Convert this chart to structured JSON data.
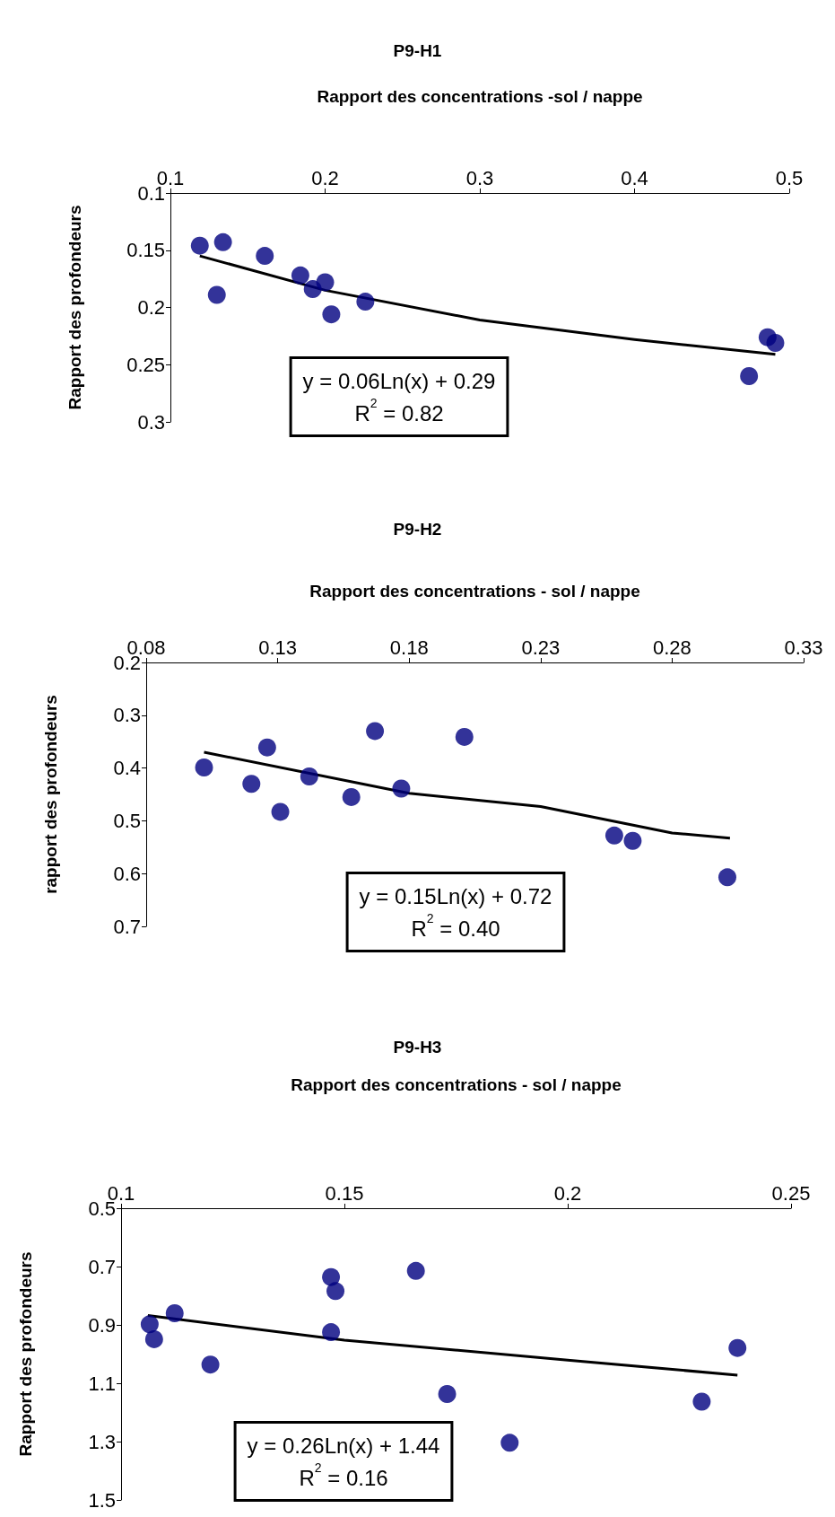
{
  "chart_data": [
    {
      "type": "scatter",
      "title": "P9-H1",
      "xlabel": "Rapport des concentrations -sol / nappe",
      "ylabel": "Rapport des profondeurs",
      "xlim": [
        0.1,
        0.5
      ],
      "xticks": [
        0.1,
        0.2,
        0.3,
        0.4,
        0.5
      ],
      "ylim": [
        0.3,
        0.1
      ],
      "yticks": [
        0.1,
        0.15,
        0.2,
        0.25,
        0.3
      ],
      "grid": false,
      "annotations": [
        "y = 0.06Ln(x) + 0.29",
        "R$^{2}$ = 0.82"
      ],
      "series": [
        {
          "marker": "circle",
          "color": "#000080",
          "x": [
            0.119,
            0.134,
            0.13,
            0.161,
            0.184,
            0.192,
            0.2,
            0.204,
            0.226,
            0.474,
            0.486,
            0.491
          ],
          "values": [
            0.146,
            0.143,
            0.189,
            0.155,
            0.172,
            0.184,
            0.178,
            0.206,
            0.195,
            0.26,
            0.226,
            0.231
          ]
        },
        {
          "type": "line",
          "marker": "none",
          "color": "#000000",
          "x": [
            0.119,
            0.2,
            0.3,
            0.4,
            0.491
          ],
          "values": [
            0.155,
            0.185,
            0.211,
            0.228,
            0.241
          ]
        }
      ]
    },
    {
      "type": "scatter",
      "title": "P9-H2",
      "xlabel": "Rapport des concentrations - sol / nappe",
      "ylabel": "rapport des profondeurs",
      "xlim": [
        0.08,
        0.33
      ],
      "xticks": [
        0.08,
        0.13,
        0.18,
        0.23,
        0.28,
        0.33
      ],
      "ylim": [
        0.7,
        0.2
      ],
      "yticks": [
        0.2,
        0.3,
        0.4,
        0.5,
        0.6,
        0.7
      ],
      "grid": false,
      "annotations": [
        "y = 0.15Ln(x) + 0.72",
        "R$^{2}$ = 0.40"
      ],
      "series": [
        {
          "marker": "circle",
          "color": "#000080",
          "x": [
            0.102,
            0.12,
            0.126,
            0.131,
            0.142,
            0.158,
            0.167,
            0.177,
            0.201,
            0.258,
            0.265,
            0.301
          ],
          "values": [
            0.399,
            0.43,
            0.361,
            0.483,
            0.416,
            0.455,
            0.33,
            0.439,
            0.341,
            0.528,
            0.538,
            0.607
          ]
        },
        {
          "type": "line",
          "marker": "none",
          "color": "#000000",
          "x": [
            0.102,
            0.18,
            0.23,
            0.28,
            0.302
          ],
          "values": [
            0.37,
            0.448,
            0.473,
            0.523,
            0.533
          ]
        }
      ]
    },
    {
      "type": "scatter",
      "title": "P9-H3",
      "xlabel": "Rapport des concentrations - sol / nappe",
      "ylabel": "Rapport des profondeurs",
      "xlim": [
        0.1,
        0.25
      ],
      "xticks": [
        0.1,
        0.15,
        0.2,
        0.25
      ],
      "ylim": [
        1.5,
        0.5
      ],
      "yticks": [
        0.5,
        0.7,
        0.9,
        1.1,
        1.3,
        1.5
      ],
      "grid": false,
      "annotations": [
        "y = 0.26Ln(x) + 1.44",
        "R$^{2}$ = 0.16"
      ],
      "series": [
        {
          "marker": "circle",
          "color": "#000080",
          "x": [
            0.1064,
            0.1074,
            0.112,
            0.12,
            0.147,
            0.148,
            0.147,
            0.166,
            0.173,
            0.187,
            0.23,
            0.238
          ],
          "values": [
            0.898,
            0.949,
            0.86,
            1.036,
            0.736,
            0.784,
            0.925,
            0.715,
            1.137,
            1.304,
            1.163,
            0.979
          ]
        },
        {
          "type": "line",
          "marker": "none",
          "color": "#000000",
          "x": [
            0.106,
            0.15,
            0.2,
            0.238
          ],
          "values": [
            0.868,
            0.952,
            1.021,
            1.072
          ]
        }
      ]
    }
  ]
}
